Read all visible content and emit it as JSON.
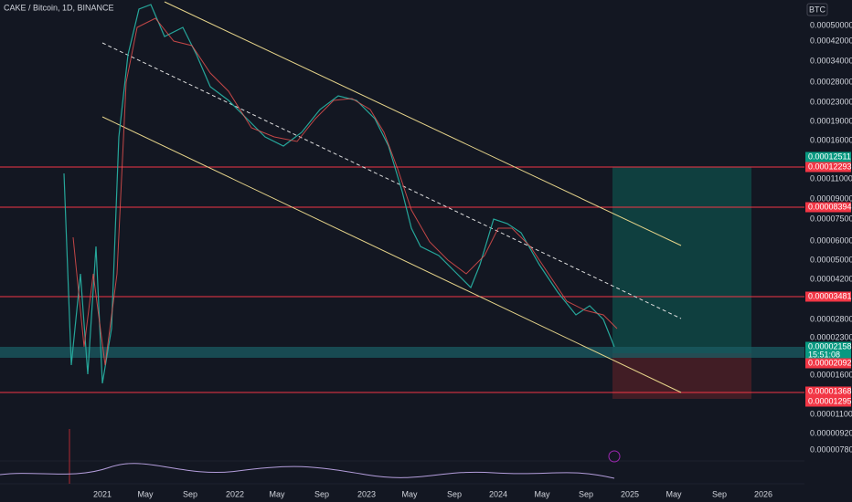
{
  "header": {
    "symbol": "CAKE / Bitcoin, 1D, BINANCE",
    "currency": "BTC"
  },
  "price_axis": {
    "labels": [
      "0.00050000",
      "0.00042000",
      "0.00034000",
      "0.00028000",
      "0.00023000",
      "0.00019000",
      "0.00016000",
      "0.00011000",
      "0.00009000",
      "0.00007500",
      "0.00006000",
      "0.00005000",
      "0.00004200",
      "0.00002800",
      "0.00002300",
      "0.00001600",
      "0.00001100",
      "0.00000920",
      "0.00000780"
    ]
  },
  "price_tags": [
    {
      "label": "0.00012511",
      "kind": "green"
    },
    {
      "label": "0.00012293",
      "kind": "red"
    },
    {
      "label": "0.00008394",
      "kind": "red"
    },
    {
      "label": "0.00003481",
      "kind": "red"
    },
    {
      "label": "0.00002158",
      "kind": "green"
    },
    {
      "label": "15:51:08",
      "kind": "green"
    },
    {
      "label": "0.00002092",
      "kind": "red"
    },
    {
      "label": "0.00001368",
      "kind": "red"
    },
    {
      "label": "0.00001295",
      "kind": "red"
    }
  ],
  "time_axis": {
    "labels": [
      "2021",
      "May",
      "Sep",
      "2022",
      "May",
      "Sep",
      "2023",
      "May",
      "Sep",
      "2024",
      "May",
      "Sep",
      "2025",
      "May",
      "Sep",
      "2026"
    ]
  }
}
